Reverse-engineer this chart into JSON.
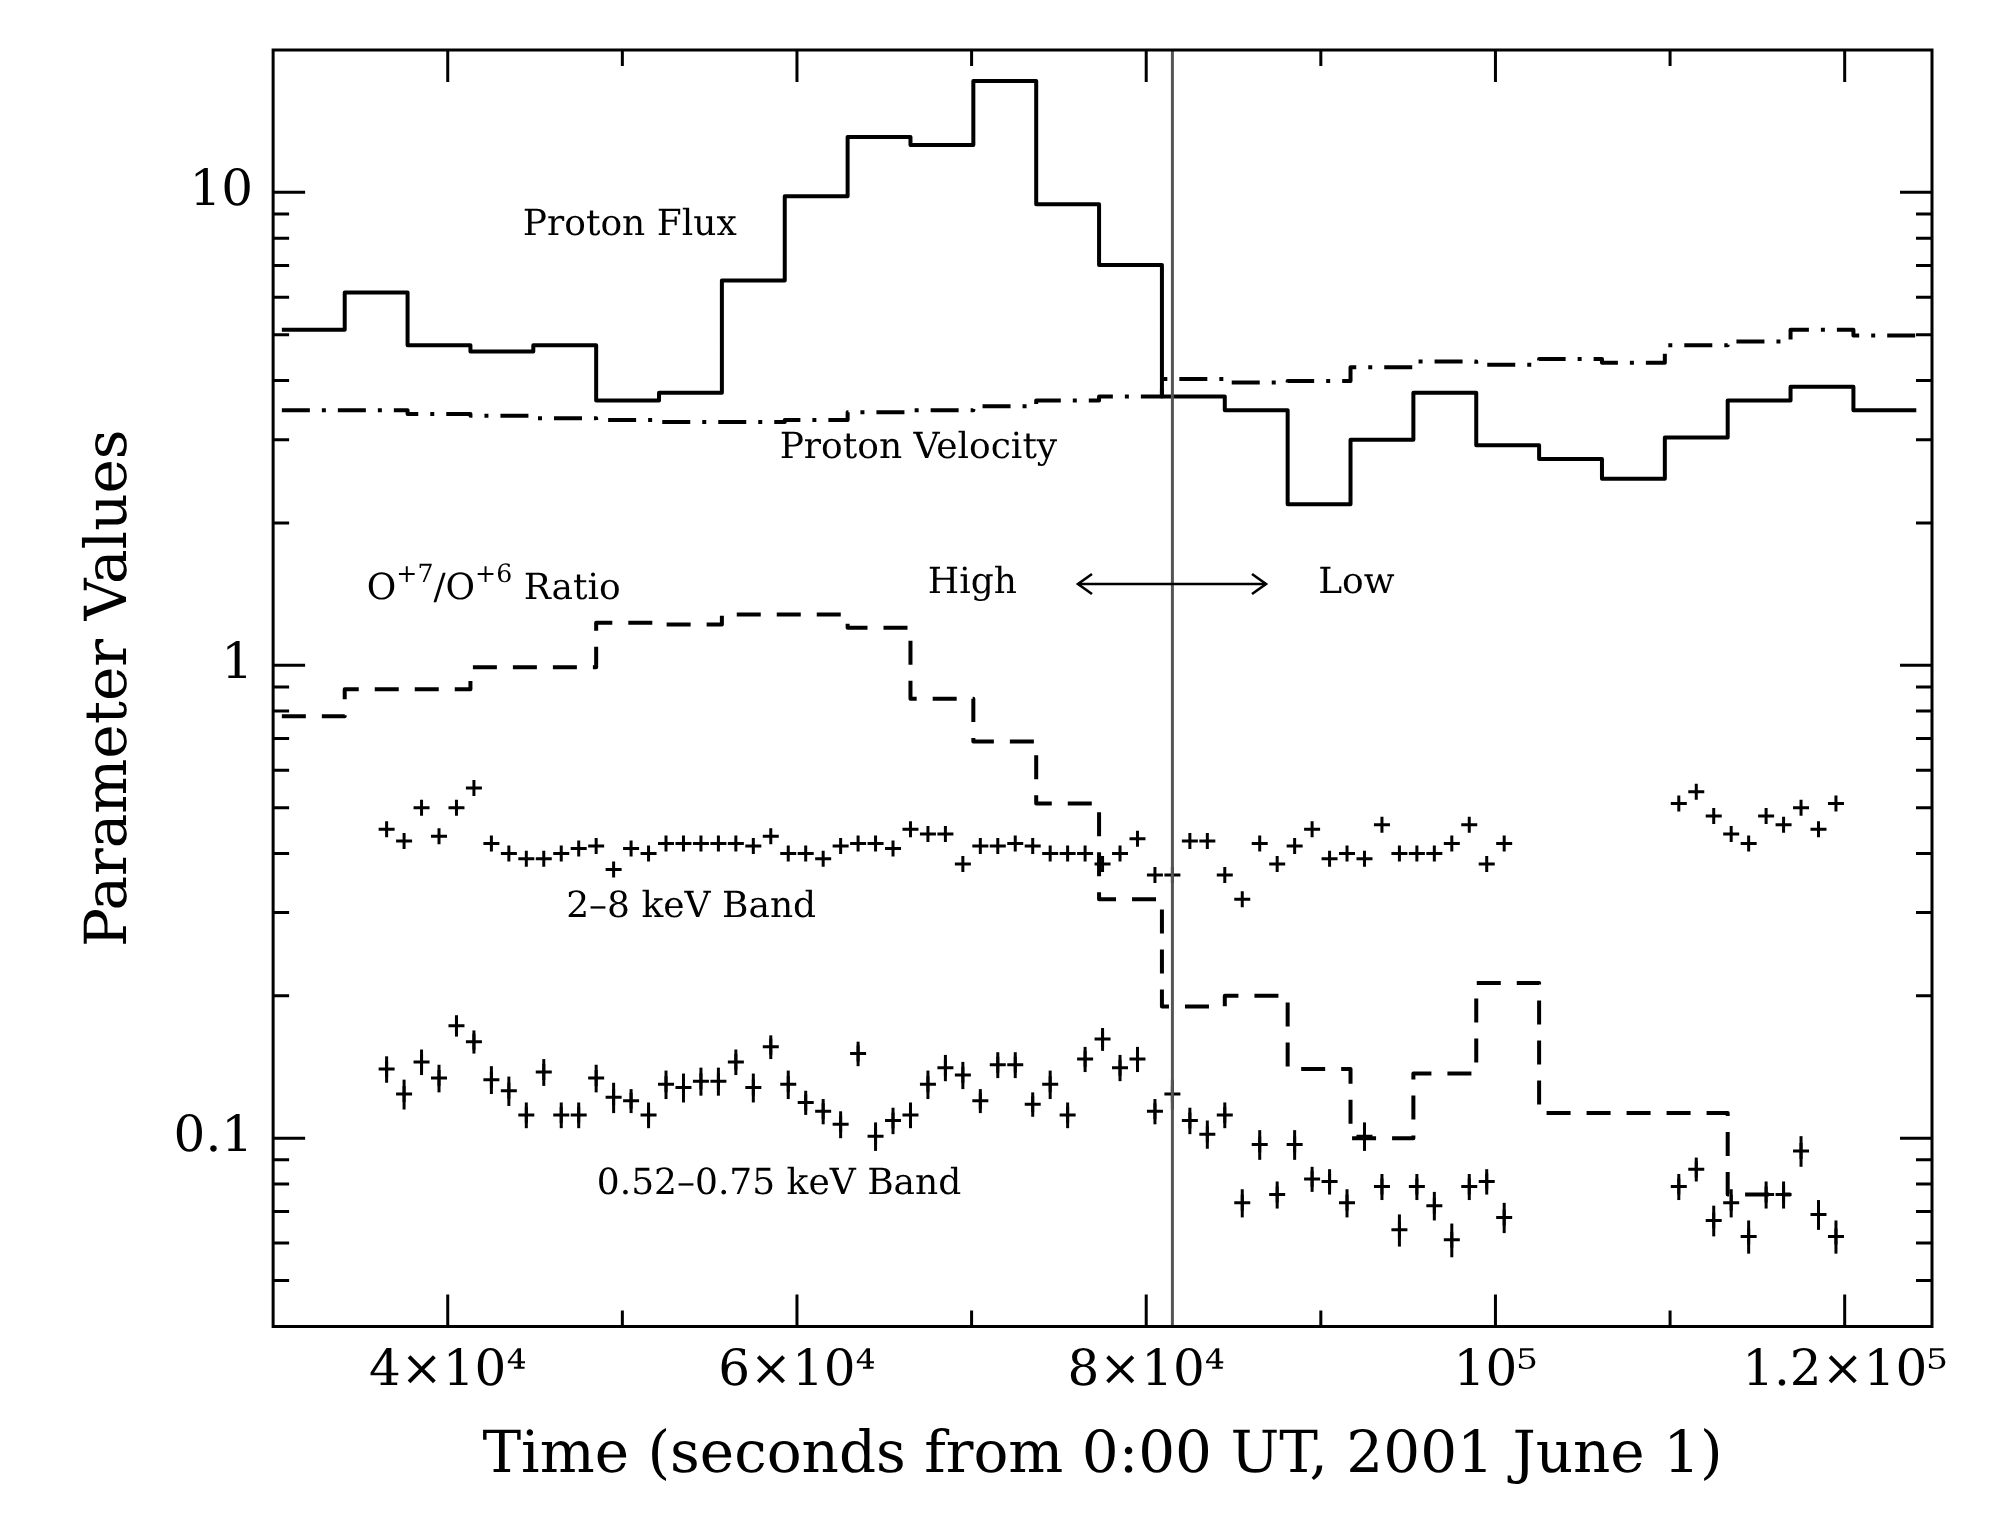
{
  "chart_data": {
    "type": "step",
    "xlabel": "Time (seconds from 0:00 UT, 2001 June 1)",
    "ylabel": "Parameter Values",
    "xlim": [
      30000,
      125000
    ],
    "ylim": [
      0.04,
      20
    ],
    "log": "y",
    "grid": false,
    "legend": false,
    "xticks": [
      {
        "value": 40000,
        "label": "4×10⁴"
      },
      {
        "value": 50000,
        "label": null
      },
      {
        "value": 60000,
        "label": "6×10⁴"
      },
      {
        "value": 70000,
        "label": null
      },
      {
        "value": 80000,
        "label": "8×10⁴"
      },
      {
        "value": 90000,
        "label": null
      },
      {
        "value": 100000,
        "label": "10⁵"
      },
      {
        "value": 110000,
        "label": null
      },
      {
        "value": 120000,
        "label": "1.2×10⁵"
      }
    ],
    "yticks": [
      {
        "value": 0.05,
        "label": null
      },
      {
        "value": 0.06,
        "label": null
      },
      {
        "value": 0.07,
        "label": null
      },
      {
        "value": 0.08,
        "label": null
      },
      {
        "value": 0.09,
        "label": null
      },
      0.1,
      {
        "value": 0.2,
        "label": null
      },
      {
        "value": 0.3,
        "label": null
      },
      {
        "value": 0.4,
        "label": null
      },
      {
        "value": 0.5,
        "label": null
      },
      {
        "value": 0.6,
        "label": null
      },
      {
        "value": 0.7,
        "label": null
      },
      {
        "value": 0.8,
        "label": null
      },
      {
        "value": 0.9,
        "label": null
      },
      1,
      {
        "value": 2,
        "label": null
      },
      {
        "value": 3,
        "label": null
      },
      {
        "value": 4,
        "label": null
      },
      {
        "value": 5,
        "label": null
      },
      {
        "value": 6,
        "label": null
      },
      {
        "value": 7,
        "label": null
      },
      {
        "value": 8,
        "label": null
      },
      {
        "value": 9,
        "label": null
      },
      10
    ],
    "ref_lines": [
      {
        "axis": "x",
        "value": 81500,
        "color": "#555555"
      }
    ],
    "series": [
      {
        "name": "Proton Flux",
        "color": "#000000",
        "line_style": "solid",
        "marker": "none",
        "x": [
          30500,
          34100,
          37700,
          41300,
          44900,
          48500,
          52100,
          55700,
          59300,
          62900,
          66500,
          70100,
          73700,
          77300,
          80900,
          84500,
          88100,
          91700,
          95300,
          98900,
          102500,
          106100,
          109700,
          113300,
          116900,
          120500,
          124100
        ],
        "values": [
          5.12,
          6.14,
          4.75,
          4.61,
          4.75,
          3.63,
          3.77,
          6.51,
          9.81,
          13.1,
          12.6,
          17.2,
          9.44,
          7.02,
          3.7,
          3.46,
          2.19,
          3.0,
          3.77,
          2.92,
          2.73,
          2.48,
          3.03,
          3.63,
          3.88,
          3.46,
          3.46
        ]
      },
      {
        "name": "Proton Velocity",
        "color": "#000000",
        "line_style": "dashdot",
        "marker": "none",
        "x": [
          30500,
          34100,
          37700,
          41300,
          44900,
          48500,
          52100,
          55700,
          59300,
          62900,
          66500,
          70100,
          73700,
          77300,
          80900,
          84500,
          88100,
          91700,
          95300,
          98900,
          102500,
          106100,
          109700,
          113300,
          116900,
          120500,
          124100
        ],
        "values": [
          3.46,
          3.46,
          3.4,
          3.37,
          3.33,
          3.3,
          3.27,
          3.27,
          3.3,
          3.43,
          3.46,
          3.53,
          3.63,
          3.7,
          4.03,
          3.96,
          3.99,
          4.27,
          4.39,
          4.32,
          4.44,
          4.36,
          4.75,
          4.84,
          5.12,
          4.98,
          4.98
        ]
      },
      {
        "name": "O$^{+7}$/O$^{+6}$ Ratio",
        "color": "#000000",
        "line_style": "dashed",
        "marker": "none",
        "x": [
          30500,
          34100,
          37700,
          41300,
          44900,
          48500,
          52100,
          55700,
          59300,
          62900,
          66500,
          70100,
          73700,
          77300,
          80900,
          84500,
          88100,
          91700,
          95300,
          98900,
          102500,
          106100,
          109700,
          113300,
          116900
        ],
        "values": [
          0.78,
          0.89,
          0.89,
          0.99,
          0.99,
          1.23,
          1.22,
          1.28,
          1.28,
          1.2,
          0.85,
          0.69,
          0.51,
          0.32,
          0.19,
          0.2,
          0.14,
          0.1,
          0.137,
          0.213,
          0.113,
          0.113,
          0.113,
          0.076,
          0.076
        ]
      },
      {
        "type": "scatter",
        "name": "2–8 keV Band",
        "color": "#000000",
        "marker": "cross",
        "x": [
          36500,
          37500,
          38500,
          39500,
          40500,
          41500,
          42500,
          43500,
          44500,
          45500,
          46500,
          47500,
          48500,
          49500,
          50500,
          51500,
          52500,
          53500,
          54500,
          55500,
          56500,
          57500,
          58500,
          59500,
          60500,
          61500,
          62500,
          63500,
          64500,
          65500,
          66500,
          67500,
          68500,
          69500,
          70500,
          71500,
          72500,
          73500,
          74500,
          75500,
          76500,
          77500,
          78500,
          79500,
          80500,
          81500,
          82500,
          83500,
          84500,
          85500,
          86500,
          87500,
          88500,
          89500,
          90500,
          91500,
          92500,
          93500,
          94500,
          95500,
          96500,
          97500,
          98500,
          99500,
          100500,
          110500,
          111500,
          112500,
          113500,
          114500,
          115500,
          116500,
          117500,
          118500,
          119500
        ],
        "values": [
          0.45,
          0.425,
          0.5,
          0.435,
          0.5,
          0.55,
          0.42,
          0.4,
          0.39,
          0.39,
          0.4,
          0.41,
          0.415,
          0.37,
          0.41,
          0.4,
          0.42,
          0.42,
          0.42,
          0.42,
          0.42,
          0.415,
          0.435,
          0.4,
          0.4,
          0.39,
          0.415,
          0.42,
          0.42,
          0.41,
          0.45,
          0.44,
          0.44,
          0.38,
          0.415,
          0.415,
          0.42,
          0.415,
          0.4,
          0.4,
          0.4,
          0.38,
          0.4,
          0.43,
          0.36,
          0.36,
          0.425,
          0.425,
          0.36,
          0.32,
          0.42,
          0.38,
          0.415,
          0.45,
          0.39,
          0.4,
          0.39,
          0.46,
          0.4,
          0.4,
          0.4,
          0.42,
          0.46,
          0.38,
          0.42,
          0.51,
          0.54,
          0.48,
          0.44,
          0.42,
          0.48,
          0.46,
          0.5,
          0.45,
          0.51
        ]
      },
      {
        "type": "scatter",
        "name": "0.52–0.75 keV Band",
        "color": "#000000",
        "marker": "cross",
        "x": [
          36500,
          37500,
          38500,
          39500,
          40500,
          41500,
          42500,
          43500,
          44500,
          45500,
          46500,
          47500,
          48500,
          49500,
          50500,
          51500,
          52500,
          53500,
          54500,
          55500,
          56500,
          57500,
          58500,
          59500,
          60500,
          61500,
          62500,
          63500,
          64500,
          65500,
          66500,
          67500,
          68500,
          69500,
          70500,
          71500,
          72500,
          73500,
          74500,
          75500,
          76500,
          77500,
          78500,
          79500,
          80500,
          81500,
          82500,
          83500,
          84500,
          85500,
          86500,
          87500,
          88500,
          89500,
          90500,
          91500,
          92500,
          93500,
          94500,
          95500,
          96500,
          97500,
          98500,
          99500,
          100500,
          110500,
          111500,
          112500,
          113500,
          114500,
          115500,
          116500,
          117500,
          118500,
          119500
        ],
        "values": [
          0.14,
          0.124,
          0.145,
          0.134,
          0.173,
          0.16,
          0.133,
          0.126,
          0.112,
          0.138,
          0.112,
          0.112,
          0.134,
          0.122,
          0.12,
          0.112,
          0.13,
          0.128,
          0.132,
          0.132,
          0.145,
          0.128,
          0.156,
          0.13,
          0.119,
          0.114,
          0.107,
          0.151,
          0.101,
          0.109,
          0.112,
          0.13,
          0.141,
          0.136,
          0.12,
          0.143,
          0.143,
          0.118,
          0.13,
          0.112,
          0.147,
          0.162,
          0.141,
          0.147,
          0.114,
          0.124,
          0.109,
          0.102,
          0.112,
          0.073,
          0.097,
          0.076,
          0.097,
          0.082,
          0.081,
          0.073,
          0.101,
          0.079,
          0.064,
          0.079,
          0.072,
          0.061,
          0.079,
          0.081,
          0.068,
          0.079,
          0.086,
          0.067,
          0.073,
          0.062,
          0.076,
          0.076,
          0.094,
          0.069,
          0.062
        ],
        "errors": [
          0.009,
          0.009,
          0.009,
          0.009,
          0.009,
          0.009,
          0.009,
          0.009,
          0.007,
          0.009,
          0.007,
          0.007,
          0.009,
          0.009,
          0.007,
          0.007,
          0.009,
          0.009,
          0.009,
          0.009,
          0.009,
          0.009,
          0.009,
          0.009,
          0.007,
          0.007,
          0.007,
          0.009,
          0.007,
          0.007,
          0.007,
          0.009,
          0.009,
          0.009,
          0.007,
          0.009,
          0.009,
          0.007,
          0.009,
          0.007,
          0.009,
          0.009,
          0.009,
          0.009,
          0.007,
          0.009,
          0.007,
          0.007,
          0.007,
          0.005,
          0.007,
          0.005,
          0.007,
          0.005,
          0.005,
          0.005,
          0.007,
          0.005,
          0.005,
          0.005,
          0.005,
          0.005,
          0.005,
          0.005,
          0.005,
          0.005,
          0.005,
          0.005,
          0.005,
          0.005,
          0.005,
          0.005,
          0.007,
          0.005,
          0.005
        ]
      }
    ],
    "annotations": [
      "High",
      "Low"
    ]
  }
}
